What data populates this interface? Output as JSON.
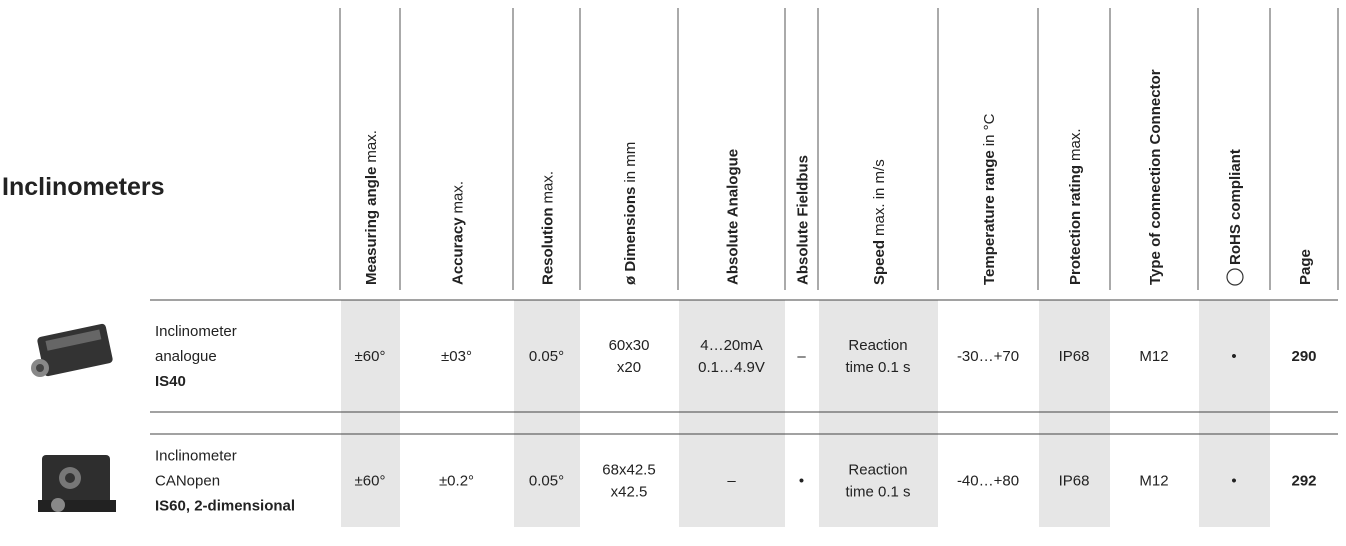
{
  "title": "Inclinometers",
  "columns": [
    {
      "bold": "Measuring angle",
      "normal": "max."
    },
    {
      "bold": "Accuracy",
      "normal": "max."
    },
    {
      "bold": "Resolution",
      "normal": "max."
    },
    {
      "bold": "ø Dimensions",
      "normal": "in mm"
    },
    {
      "bold": "Absolute Analogue"
    },
    {
      "bold": "Absolute Fieldbus"
    },
    {
      "bold": "Speed",
      "normal": "max. in m/s"
    },
    {
      "bold": "Temperature range",
      "normal": "in °C"
    },
    {
      "bold": "Protection rating",
      "normal": "max."
    },
    {
      "bold": "Type of connection Connector"
    },
    {
      "bold": "RoHS compliant"
    },
    {
      "bold": "Page"
    }
  ],
  "rows": [
    {
      "product": [
        "Inclinometer",
        "analogue"
      ],
      "model": "IS40",
      "cells": [
        [
          "±60°"
        ],
        [
          "±03°"
        ],
        [
          "0.05°"
        ],
        [
          "60x30",
          "x20"
        ],
        [
          "4…20mA",
          "0.1…4.9V"
        ],
        [
          "–"
        ],
        [
          "Reaction",
          "time 0.1 s"
        ],
        [
          "-30…+70"
        ],
        [
          "IP68"
        ],
        [
          "M12"
        ],
        [
          "•"
        ],
        [
          "290"
        ]
      ]
    },
    {
      "product": [
        "Inclinometer",
        "CANopen"
      ],
      "model": "IS60, 2-dimensional",
      "cells": [
        [
          "±60°"
        ],
        [
          "±0.2°"
        ],
        [
          "0.05°"
        ],
        [
          "68x42.5",
          "x42.5"
        ],
        [
          "–"
        ],
        [
          "•"
        ],
        [
          "Reaction",
          "time 0.1 s"
        ],
        [
          "-40…+80"
        ],
        [
          "IP68"
        ],
        [
          "M12"
        ],
        [
          "•"
        ],
        [
          "292"
        ]
      ]
    }
  ]
}
